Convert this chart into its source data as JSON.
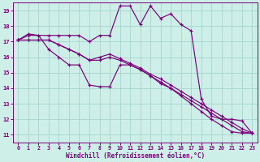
{
  "bg_color": "#ceeee8",
  "line_color": "#7b007b",
  "grid_color": "#aad8d0",
  "xlabel": "Windchill (Refroidissement éolien,°C)",
  "tick_color": "#7b007b",
  "xlim": [
    -0.5,
    23.5
  ],
  "ylim": [
    10.5,
    19.5
  ],
  "xticks": [
    0,
    1,
    2,
    3,
    4,
    5,
    6,
    7,
    8,
    9,
    10,
    11,
    12,
    13,
    14,
    15,
    16,
    17,
    18,
    19,
    20,
    21,
    22,
    23
  ],
  "yticks": [
    11,
    12,
    13,
    14,
    15,
    16,
    17,
    18,
    19
  ],
  "series": [
    [
      17.1,
      17.5,
      17.4,
      17.4,
      17.4,
      17.4,
      17.4,
      17.0,
      17.4,
      17.4,
      19.3,
      19.3,
      18.1,
      19.3,
      18.5,
      18.8,
      18.1,
      17.7,
      13.3,
      12.2,
      12.0,
      12.0,
      11.9,
      11.1
    ],
    [
      17.1,
      17.4,
      17.4,
      16.5,
      16.0,
      15.5,
      15.5,
      14.2,
      14.1,
      14.1,
      15.5,
      15.5,
      15.2,
      14.8,
      14.3,
      14.0,
      13.5,
      13.0,
      12.5,
      12.0,
      11.6,
      11.2,
      11.1,
      11.1
    ],
    [
      17.1,
      17.1,
      17.1,
      17.1,
      16.8,
      16.5,
      16.2,
      15.8,
      15.8,
      16.0,
      15.8,
      15.5,
      15.2,
      14.8,
      14.4,
      14.0,
      13.6,
      13.2,
      12.8,
      12.4,
      12.0,
      11.6,
      11.2,
      11.1
    ],
    [
      17.1,
      17.1,
      17.1,
      17.1,
      16.8,
      16.5,
      16.2,
      15.8,
      16.0,
      16.2,
      15.9,
      15.6,
      15.3,
      14.9,
      14.6,
      14.2,
      13.8,
      13.4,
      13.0,
      12.6,
      12.2,
      11.8,
      11.4,
      11.1
    ]
  ]
}
